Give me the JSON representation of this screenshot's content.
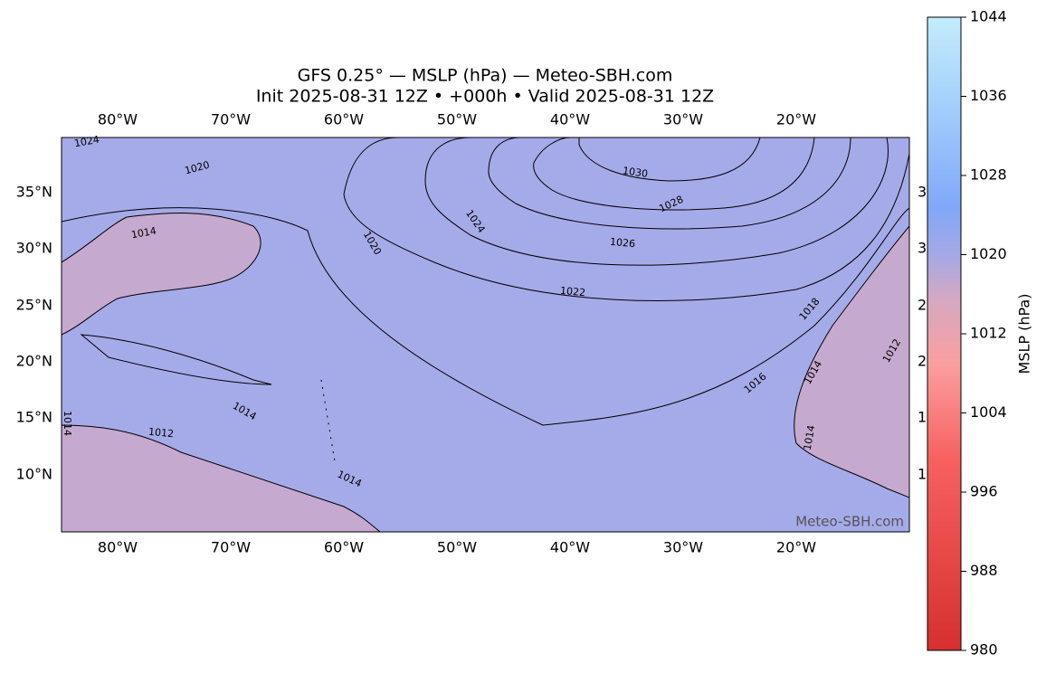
{
  "title": "GFS 0.25° — MSLP (hPa) — Meteo-SBH.com",
  "subtitle": "Init 2025-08-31 12Z • +000h • Valid 2025-08-31 12Z",
  "map": {
    "lon_labels": [
      "80°W",
      "70°W",
      "60°W",
      "50°W",
      "40°W",
      "30°W",
      "20°W"
    ],
    "lat_labels": [
      "35°N",
      "30°N",
      "25°N",
      "20°N",
      "15°N",
      "10°N"
    ],
    "contour_labels": [
      1024,
      1020,
      1014,
      1030,
      1028,
      1024,
      1026,
      1020,
      1022,
      1018,
      1016,
      1014,
      1014,
      1012,
      1014,
      1014,
      1012,
      1014
    ],
    "edge_fragments": [
      "3",
      "3",
      "2",
      "2",
      "1",
      "1"
    ],
    "watermark": "Meteo-SBH.com"
  },
  "colorbar": {
    "label": "MSLP (hPa)",
    "lim": [
      980,
      1044
    ],
    "ticks": [
      980,
      988,
      996,
      1004,
      1012,
      1020,
      1028,
      1036,
      1044
    ]
  }
}
